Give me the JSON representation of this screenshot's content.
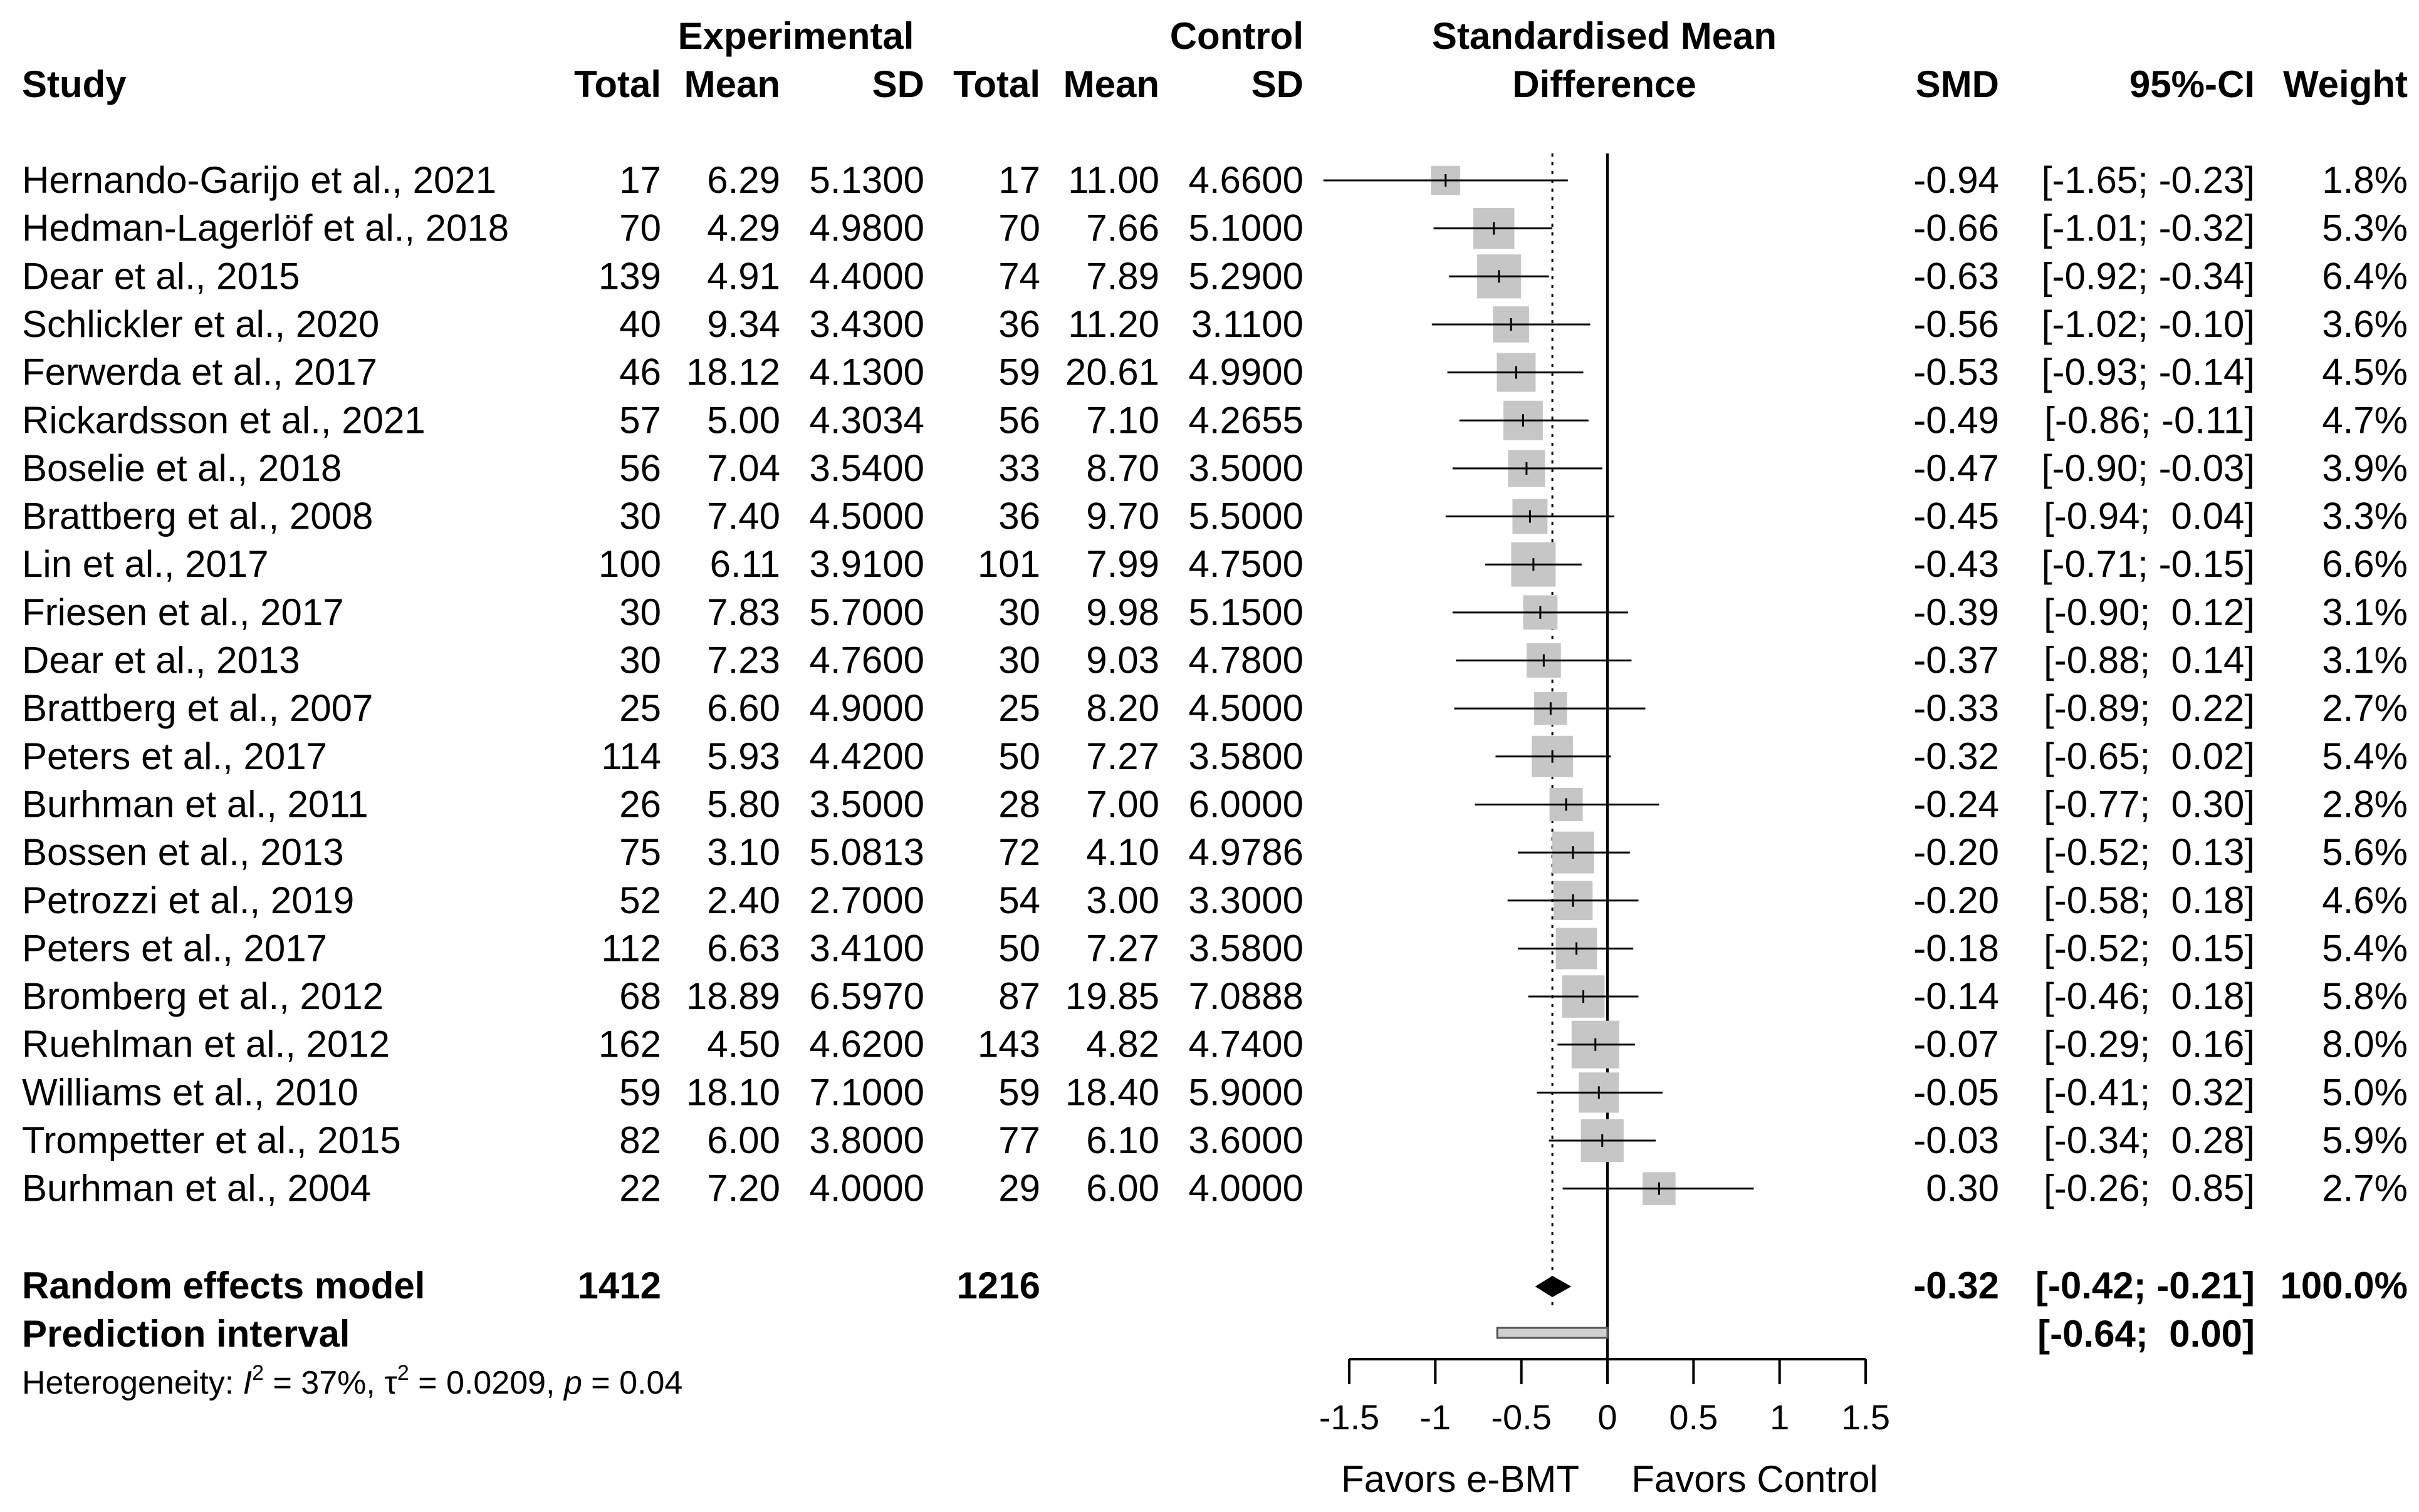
{
  "chart_data": {
    "type": "forest",
    "header": {
      "group_experimental": "Experimental",
      "group_control": "Control",
      "plot_title_line1": "Standardised Mean",
      "plot_title_line2": "Difference",
      "study": "Study",
      "total": "Total",
      "mean": "Mean",
      "sd": "SD",
      "smd": "SMD",
      "ci": "95%-CI",
      "weight": "Weight"
    },
    "studies": [
      {
        "study": "Hernando-Garijo et al., 2021",
        "e_total": "17",
        "e_mean": "6.29",
        "e_sd": "5.1300",
        "c_total": "17",
        "c_mean": "11.00",
        "c_sd": "4.6600",
        "smd": -0.94,
        "lower": -1.65,
        "upper": -0.23,
        "weight": 1.8,
        "smd_text": "-0.94",
        "ci_text": "[-1.65; -0.23]",
        "weight_text": "1.8%"
      },
      {
        "study": "Hedman-Lagerlöf et al., 2018",
        "e_total": "70",
        "e_mean": "4.29",
        "e_sd": "4.9800",
        "c_total": "70",
        "c_mean": "7.66",
        "c_sd": "5.1000",
        "smd": -0.66,
        "lower": -1.01,
        "upper": -0.32,
        "weight": 5.3,
        "smd_text": "-0.66",
        "ci_text": "[-1.01; -0.32]",
        "weight_text": "5.3%"
      },
      {
        "study": "Dear et al., 2015",
        "e_total": "139",
        "e_mean": "4.91",
        "e_sd": "4.4000",
        "c_total": "74",
        "c_mean": "7.89",
        "c_sd": "5.2900",
        "smd": -0.63,
        "lower": -0.92,
        "upper": -0.34,
        "weight": 6.4,
        "smd_text": "-0.63",
        "ci_text": "[-0.92; -0.34]",
        "weight_text": "6.4%"
      },
      {
        "study": "Schlickler et al., 2020",
        "e_total": "40",
        "e_mean": "9.34",
        "e_sd": "3.4300",
        "c_total": "36",
        "c_mean": "11.20",
        "c_sd": "3.1100",
        "smd": -0.56,
        "lower": -1.02,
        "upper": -0.1,
        "weight": 3.6,
        "smd_text": "-0.56",
        "ci_text": "[-1.02; -0.10]",
        "weight_text": "3.6%"
      },
      {
        "study": "Ferwerda et al., 2017",
        "e_total": "46",
        "e_mean": "18.12",
        "e_sd": "4.1300",
        "c_total": "59",
        "c_mean": "20.61",
        "c_sd": "4.9900",
        "smd": -0.53,
        "lower": -0.93,
        "upper": -0.14,
        "weight": 4.5,
        "smd_text": "-0.53",
        "ci_text": "[-0.93; -0.14]",
        "weight_text": "4.5%"
      },
      {
        "study": "Rickardsson et al., 2021",
        "e_total": "57",
        "e_mean": "5.00",
        "e_sd": "4.3034",
        "c_total": "56",
        "c_mean": "7.10",
        "c_sd": "4.2655",
        "smd": -0.49,
        "lower": -0.86,
        "upper": -0.11,
        "weight": 4.7,
        "smd_text": "-0.49",
        "ci_text": "[-0.86; -0.11]",
        "weight_text": "4.7%"
      },
      {
        "study": "Boselie et al., 2018",
        "e_total": "56",
        "e_mean": "7.04",
        "e_sd": "3.5400",
        "c_total": "33",
        "c_mean": "8.70",
        "c_sd": "3.5000",
        "smd": -0.47,
        "lower": -0.9,
        "upper": -0.03,
        "weight": 3.9,
        "smd_text": "-0.47",
        "ci_text": "[-0.90; -0.03]",
        "weight_text": "3.9%"
      },
      {
        "study": "Brattberg et al., 2008",
        "e_total": "30",
        "e_mean": "7.40",
        "e_sd": "4.5000",
        "c_total": "36",
        "c_mean": "9.70",
        "c_sd": "5.5000",
        "smd": -0.45,
        "lower": -0.94,
        "upper": 0.04,
        "weight": 3.3,
        "smd_text": "-0.45",
        "ci_text": "[-0.94;  0.04]",
        "weight_text": "3.3%"
      },
      {
        "study": "Lin et al., 2017",
        "e_total": "100",
        "e_mean": "6.11",
        "e_sd": "3.9100",
        "c_total": "101",
        "c_mean": "7.99",
        "c_sd": "4.7500",
        "smd": -0.43,
        "lower": -0.71,
        "upper": -0.15,
        "weight": 6.6,
        "smd_text": "-0.43",
        "ci_text": "[-0.71; -0.15]",
        "weight_text": "6.6%"
      },
      {
        "study": "Friesen et al., 2017",
        "e_total": "30",
        "e_mean": "7.83",
        "e_sd": "5.7000",
        "c_total": "30",
        "c_mean": "9.98",
        "c_sd": "5.1500",
        "smd": -0.39,
        "lower": -0.9,
        "upper": 0.12,
        "weight": 3.1,
        "smd_text": "-0.39",
        "ci_text": "[-0.90;  0.12]",
        "weight_text": "3.1%"
      },
      {
        "study": "Dear et al., 2013",
        "e_total": "30",
        "e_mean": "7.23",
        "e_sd": "4.7600",
        "c_total": "30",
        "c_mean": "9.03",
        "c_sd": "4.7800",
        "smd": -0.37,
        "lower": -0.88,
        "upper": 0.14,
        "weight": 3.1,
        "smd_text": "-0.37",
        "ci_text": "[-0.88;  0.14]",
        "weight_text": "3.1%"
      },
      {
        "study": "Brattberg et al., 2007",
        "e_total": "25",
        "e_mean": "6.60",
        "e_sd": "4.9000",
        "c_total": "25",
        "c_mean": "8.20",
        "c_sd": "4.5000",
        "smd": -0.33,
        "lower": -0.89,
        "upper": 0.22,
        "weight": 2.7,
        "smd_text": "-0.33",
        "ci_text": "[-0.89;  0.22]",
        "weight_text": "2.7%"
      },
      {
        "study": "Peters et al., 2017",
        "e_total": "114",
        "e_mean": "5.93",
        "e_sd": "4.4200",
        "c_total": "50",
        "c_mean": "7.27",
        "c_sd": "3.5800",
        "smd": -0.32,
        "lower": -0.65,
        "upper": 0.02,
        "weight": 5.4,
        "smd_text": "-0.32",
        "ci_text": "[-0.65;  0.02]",
        "weight_text": "5.4%"
      },
      {
        "study": "Burhman et al., 2011",
        "e_total": "26",
        "e_mean": "5.80",
        "e_sd": "3.5000",
        "c_total": "28",
        "c_mean": "7.00",
        "c_sd": "6.0000",
        "smd": -0.24,
        "lower": -0.77,
        "upper": 0.3,
        "weight": 2.8,
        "smd_text": "-0.24",
        "ci_text": "[-0.77;  0.30]",
        "weight_text": "2.8%"
      },
      {
        "study": "Bossen et al., 2013",
        "e_total": "75",
        "e_mean": "3.10",
        "e_sd": "5.0813",
        "c_total": "72",
        "c_mean": "4.10",
        "c_sd": "4.9786",
        "smd": -0.2,
        "lower": -0.52,
        "upper": 0.13,
        "weight": 5.6,
        "smd_text": "-0.20",
        "ci_text": "[-0.52;  0.13]",
        "weight_text": "5.6%"
      },
      {
        "study": "Petrozzi et al., 2019",
        "e_total": "52",
        "e_mean": "2.40",
        "e_sd": "2.7000",
        "c_total": "54",
        "c_mean": "3.00",
        "c_sd": "3.3000",
        "smd": -0.2,
        "lower": -0.58,
        "upper": 0.18,
        "weight": 4.6,
        "smd_text": "-0.20",
        "ci_text": "[-0.58;  0.18]",
        "weight_text": "4.6%"
      },
      {
        "study": "Peters et al., 2017",
        "e_total": "112",
        "e_mean": "6.63",
        "e_sd": "3.4100",
        "c_total": "50",
        "c_mean": "7.27",
        "c_sd": "3.5800",
        "smd": -0.18,
        "lower": -0.52,
        "upper": 0.15,
        "weight": 5.4,
        "smd_text": "-0.18",
        "ci_text": "[-0.52;  0.15]",
        "weight_text": "5.4%"
      },
      {
        "study": "Bromberg et al., 2012",
        "e_total": "68",
        "e_mean": "18.89",
        "e_sd": "6.5970",
        "c_total": "87",
        "c_mean": "19.85",
        "c_sd": "7.0888",
        "smd": -0.14,
        "lower": -0.46,
        "upper": 0.18,
        "weight": 5.8,
        "smd_text": "-0.14",
        "ci_text": "[-0.46;  0.18]",
        "weight_text": "5.8%"
      },
      {
        "study": "Ruehlman et al., 2012",
        "e_total": "162",
        "e_mean": "4.50",
        "e_sd": "4.6200",
        "c_total": "143",
        "c_mean": "4.82",
        "c_sd": "4.7400",
        "smd": -0.07,
        "lower": -0.29,
        "upper": 0.16,
        "weight": 8.0,
        "smd_text": "-0.07",
        "ci_text": "[-0.29;  0.16]",
        "weight_text": "8.0%"
      },
      {
        "study": "Williams et al., 2010",
        "e_total": "59",
        "e_mean": "18.10",
        "e_sd": "7.1000",
        "c_total": "59",
        "c_mean": "18.40",
        "c_sd": "5.9000",
        "smd": -0.05,
        "lower": -0.41,
        "upper": 0.32,
        "weight": 5.0,
        "smd_text": "-0.05",
        "ci_text": "[-0.41;  0.32]",
        "weight_text": "5.0%"
      },
      {
        "study": "Trompetter et al., 2015",
        "e_total": "82",
        "e_mean": "6.00",
        "e_sd": "3.8000",
        "c_total": "77",
        "c_mean": "6.10",
        "c_sd": "3.6000",
        "smd": -0.03,
        "lower": -0.34,
        "upper": 0.28,
        "weight": 5.9,
        "smd_text": "-0.03",
        "ci_text": "[-0.34;  0.28]",
        "weight_text": "5.9%"
      },
      {
        "study": "Burhman et al., 2004",
        "e_total": "22",
        "e_mean": "7.20",
        "e_sd": "4.0000",
        "c_total": "29",
        "c_mean": "6.00",
        "c_sd": "4.0000",
        "smd": 0.3,
        "lower": -0.26,
        "upper": 0.85,
        "weight": 2.7,
        "smd_text": "0.30",
        "ci_text": "[-0.26;  0.85]",
        "weight_text": "2.7%"
      }
    ],
    "random_effects": {
      "label": "Random effects model",
      "e_total": "1412",
      "c_total": "1216",
      "smd": -0.32,
      "lower": -0.42,
      "upper": -0.21,
      "smd_text": "-0.32",
      "ci_text": "[-0.42; -0.21]",
      "weight_text": "100.0%"
    },
    "prediction_interval": {
      "label": "Prediction interval",
      "lower": -0.64,
      "upper": 0.0,
      "ci_text": "[-0.64;  0.00]"
    },
    "heterogeneity": {
      "prefix": "Heterogeneity: ",
      "i2_symbol": "I",
      "i2_sup": "2",
      "i2_value": " = 37%, ",
      "tau_symbol": "τ",
      "tau_sup": "2",
      "tau_value": " = 0.0209, ",
      "p_symbol": "p",
      "p_value": " = 0.04"
    },
    "axis": {
      "xlim": [
        -1.5,
        1.5
      ],
      "ticks": [
        -1.5,
        -1,
        -0.5,
        0,
        0.5,
        1,
        1.5
      ],
      "tick_labels": [
        "-1.5",
        "-1",
        "-0.5",
        "0",
        "0.5",
        "1",
        "1.5"
      ],
      "label_left": "Favors e-BMT",
      "label_right": "Favors Control"
    },
    "colors": {
      "box": "#c6c6c6",
      "line": "#000000",
      "diamond": "#000000",
      "prediction_fill": "#d0d0d0"
    }
  }
}
